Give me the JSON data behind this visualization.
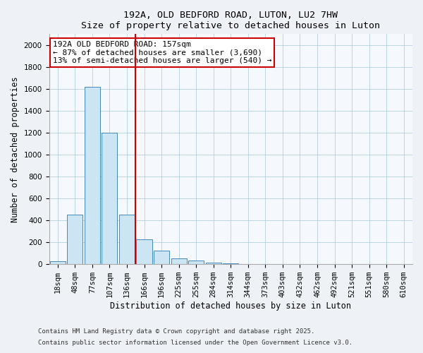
{
  "title1": "192A, OLD BEDFORD ROAD, LUTON, LU2 7HW",
  "title2": "Size of property relative to detached houses in Luton",
  "xlabel": "Distribution of detached houses by size in Luton",
  "ylabel": "Number of detached properties",
  "categories": [
    "18sqm",
    "48sqm",
    "77sqm",
    "107sqm",
    "136sqm",
    "166sqm",
    "196sqm",
    "225sqm",
    "255sqm",
    "284sqm",
    "314sqm",
    "344sqm",
    "373sqm",
    "403sqm",
    "432sqm",
    "462sqm",
    "492sqm",
    "521sqm",
    "551sqm",
    "580sqm",
    "610sqm"
  ],
  "values": [
    30,
    450,
    1620,
    1200,
    450,
    225,
    125,
    50,
    35,
    15,
    10,
    0,
    0,
    0,
    0,
    0,
    0,
    0,
    0,
    0,
    0
  ],
  "bar_color": "#cce5f5",
  "bar_edge_color": "#4488bb",
  "red_line_x": 4.5,
  "red_line_color": "#cc0000",
  "annotation_text": "192A OLD BEDFORD ROAD: 157sqm\n← 87% of detached houses are smaller (3,690)\n13% of semi-detached houses are larger (540) →",
  "annotation_box_facecolor": "#ffffff",
  "annotation_box_edgecolor": "#cc0000",
  "ylim": [
    0,
    2100
  ],
  "yticks": [
    0,
    200,
    400,
    600,
    800,
    1000,
    1200,
    1400,
    1600,
    1800,
    2000
  ],
  "footnote1": "Contains HM Land Registry data © Crown copyright and database right 2025.",
  "footnote2": "Contains public sector information licensed under the Open Government Licence v3.0.",
  "bg_color": "#eef2f7",
  "plot_bg_color": "#f5f8fc",
  "grid_color": "#aaccdd",
  "title_fontsize": 9.5,
  "label_fontsize": 8.5,
  "tick_fontsize": 7.5,
  "footnote_fontsize": 6.5,
  "annot_fontsize": 8.0
}
